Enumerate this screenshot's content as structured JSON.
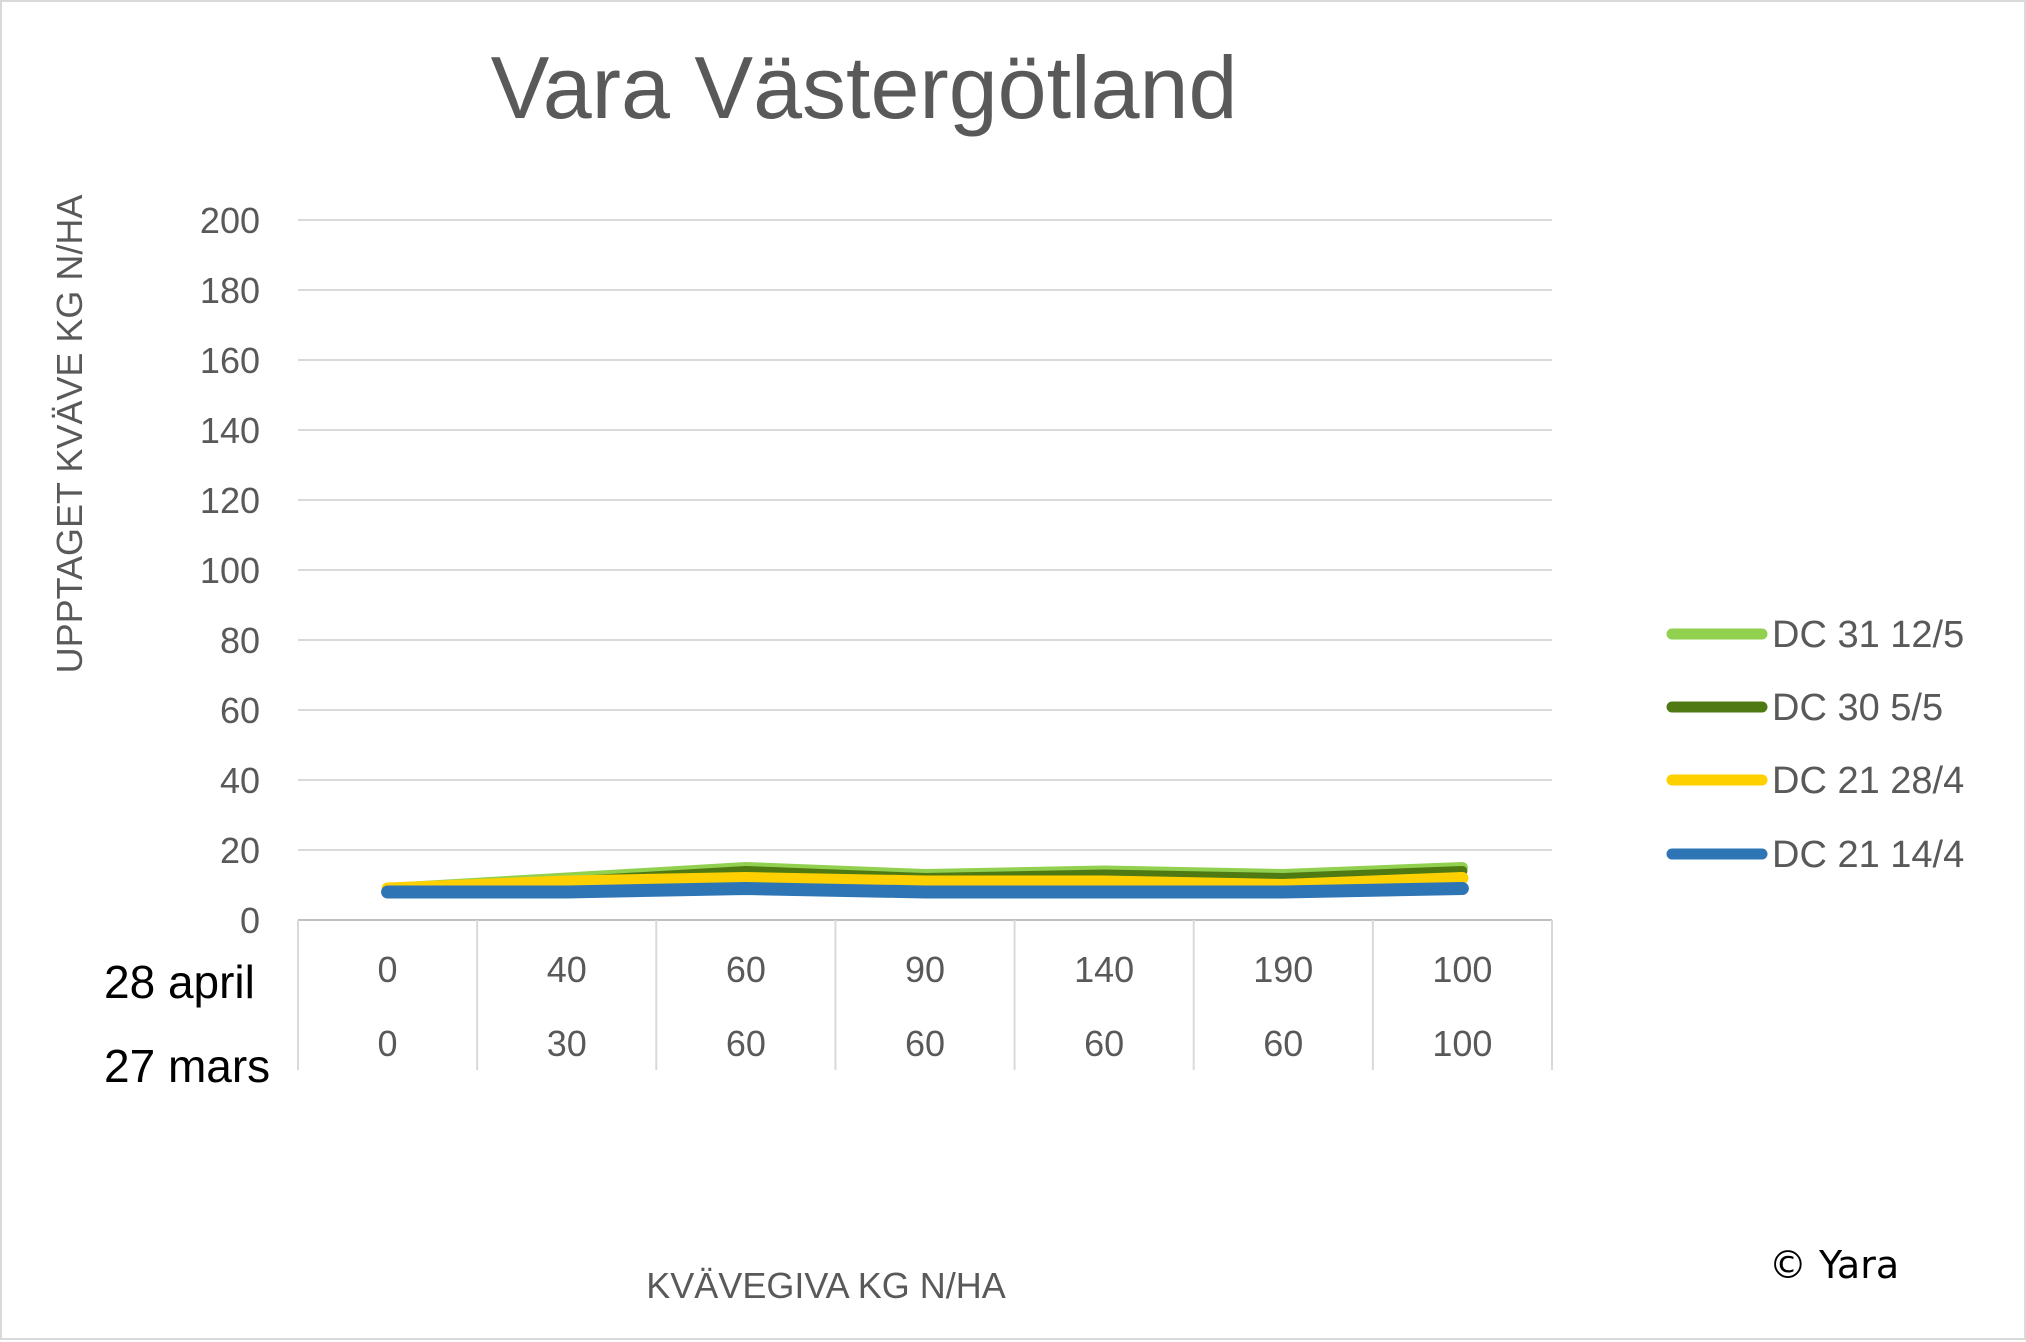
{
  "chart_data": {
    "type": "line",
    "title": "Vara Västergötland",
    "xlabel": "KVÄVEGIVA  KG N/HA",
    "ylabel": "UPPTAGET KVÄVE KG N/HA",
    "ylim": [
      0,
      200
    ],
    "yticks": [
      "0",
      "20",
      "40",
      "60",
      "80",
      "100",
      "120",
      "140",
      "160",
      "180",
      "200"
    ],
    "category_rows": [
      {
        "label": "28 april",
        "values": [
          "0",
          "40",
          "60",
          "90",
          "140",
          "190",
          "100"
        ]
      },
      {
        "label": "27 mars",
        "values": [
          "0",
          "30",
          "60",
          "60",
          "60",
          "60",
          "100"
        ]
      }
    ],
    "grid": true,
    "legend_position": "right",
    "series": [
      {
        "name": "DC 31 12/5",
        "color": "#92d050",
        "values": [
          9,
          12,
          15,
          13,
          14,
          13,
          15
        ]
      },
      {
        "name": "DC 30 5/5",
        "color": "#4f7a13",
        "values": [
          9,
          11,
          14,
          12,
          13,
          12,
          14
        ]
      },
      {
        "name": "DC 21 28/4",
        "color": "#ffd000",
        "values": [
          9,
          11,
          12,
          11,
          11,
          10,
          12
        ]
      },
      {
        "name": "DC 21 14/4",
        "color": "#2e75b6",
        "values": [
          8,
          8,
          9,
          8,
          8,
          8,
          9
        ]
      }
    ]
  },
  "copyright": "© Yara"
}
